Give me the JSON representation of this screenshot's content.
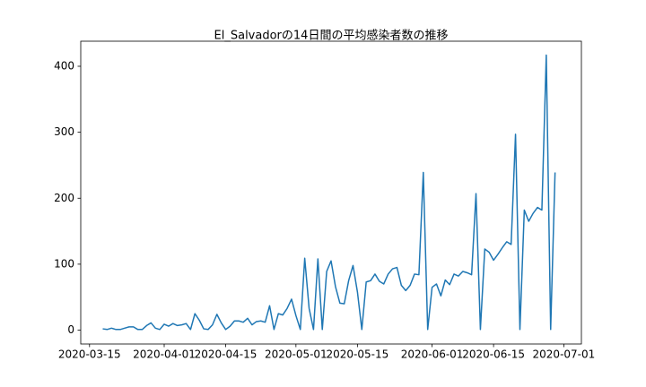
{
  "chart_data": {
    "type": "line",
    "title": "El_Salvadorの14日間の平均感染者数の推移",
    "x": [
      "2020-03-18",
      "2020-03-19",
      "2020-03-20",
      "2020-03-21",
      "2020-03-22",
      "2020-03-23",
      "2020-03-24",
      "2020-03-25",
      "2020-03-26",
      "2020-03-27",
      "2020-03-28",
      "2020-03-29",
      "2020-03-30",
      "2020-03-31",
      "2020-04-01",
      "2020-04-02",
      "2020-04-03",
      "2020-04-04",
      "2020-04-05",
      "2020-04-06",
      "2020-04-07",
      "2020-04-08",
      "2020-04-09",
      "2020-04-10",
      "2020-04-11",
      "2020-04-12",
      "2020-04-13",
      "2020-04-14",
      "2020-04-15",
      "2020-04-16",
      "2020-04-17",
      "2020-04-18",
      "2020-04-19",
      "2020-04-20",
      "2020-04-21",
      "2020-04-22",
      "2020-04-23",
      "2020-04-24",
      "2020-04-25",
      "2020-04-26",
      "2020-04-27",
      "2020-04-28",
      "2020-04-29",
      "2020-04-30",
      "2020-05-01",
      "2020-05-02",
      "2020-05-03",
      "2020-05-04",
      "2020-05-05",
      "2020-05-06",
      "2020-05-07",
      "2020-05-08",
      "2020-05-09",
      "2020-05-10",
      "2020-05-11",
      "2020-05-12",
      "2020-05-13",
      "2020-05-14",
      "2020-05-15",
      "2020-05-16",
      "2020-05-17",
      "2020-05-18",
      "2020-05-19",
      "2020-05-20",
      "2020-05-21",
      "2020-05-22",
      "2020-05-23",
      "2020-05-24",
      "2020-05-25",
      "2020-05-26",
      "2020-05-27",
      "2020-05-28",
      "2020-05-29",
      "2020-05-30",
      "2020-05-31",
      "2020-06-01",
      "2020-06-02",
      "2020-06-03",
      "2020-06-04",
      "2020-06-05",
      "2020-06-06",
      "2020-06-07",
      "2020-06-08",
      "2020-06-09",
      "2020-06-10",
      "2020-06-11",
      "2020-06-12",
      "2020-06-13",
      "2020-06-14",
      "2020-06-15",
      "2020-06-16",
      "2020-06-17",
      "2020-06-18",
      "2020-06-19",
      "2020-06-20",
      "2020-06-21",
      "2020-06-22",
      "2020-06-23",
      "2020-06-24",
      "2020-06-25",
      "2020-06-26",
      "2020-06-27",
      "2020-06-28",
      "2020-06-29"
    ],
    "series": [
      {
        "name": "El_Salvador",
        "color": "#1f77b4",
        "values": [
          2,
          1,
          3,
          1,
          1,
          3,
          5,
          5,
          1,
          1,
          7,
          11,
          3,
          1,
          9,
          6,
          10,
          7,
          8,
          10,
          1,
          25,
          15,
          2,
          1,
          8,
          24,
          11,
          1,
          6,
          14,
          14,
          12,
          18,
          8,
          13,
          14,
          12,
          37,
          1,
          25,
          23,
          33,
          47,
          22,
          1,
          109,
          33,
          1,
          108,
          1,
          89,
          105,
          66,
          41,
          40,
          75,
          98,
          58,
          1,
          73,
          75,
          85,
          74,
          70,
          85,
          93,
          95,
          68,
          60,
          68,
          85,
          84,
          239,
          1,
          65,
          70,
          52,
          76,
          69,
          85,
          82,
          89,
          87,
          84,
          207,
          1,
          123,
          118,
          106,
          115,
          125,
          134,
          130,
          297,
          1,
          182,
          165,
          177,
          186,
          182,
          417,
          1,
          239
        ]
      }
    ],
    "xlim": [
      "2020-03-13",
      "2020-07-05"
    ],
    "xticks": [
      "2020-03-15",
      "2020-04-01",
      "2020-04-15",
      "2020-05-01",
      "2020-05-15",
      "2020-06-01",
      "2020-06-15",
      "2020-07-01"
    ],
    "ylim": [
      -21,
      438
    ],
    "yticks": [
      0,
      100,
      200,
      300,
      400
    ]
  }
}
